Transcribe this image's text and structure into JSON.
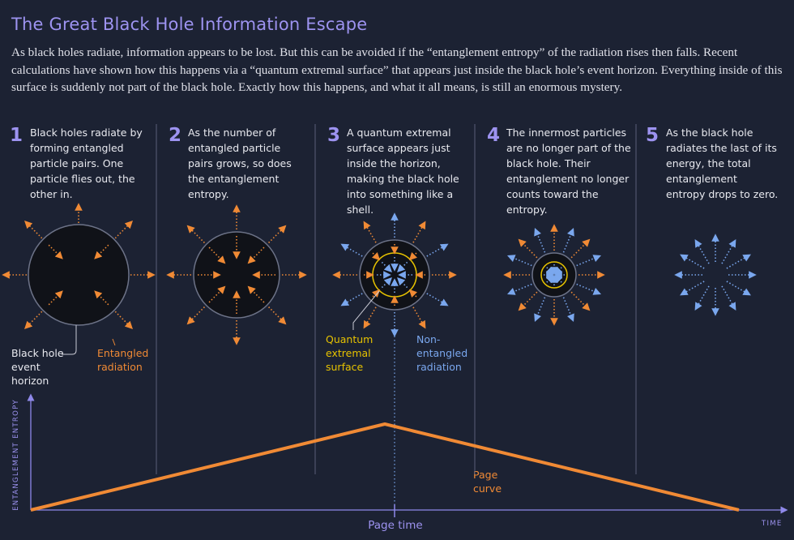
{
  "title": "The Great Black Hole Information Escape",
  "intro": "As black holes radiate, information appears to be lost. But this can be avoided if the “entanglement entropy” of the radiation rises then falls. Recent calculations have shown how this happens via a “quantum extremal surface” that appears just inside the black hole’s event horizon. Everything inside of this surface is suddenly not part of the black hole. Exactly how this happens, and what it all means, is still an enormous mystery.",
  "panels": [
    {
      "num": "1",
      "text": "Black holes radiate by forming entangled particle pairs. One particle flies out, the other in."
    },
    {
      "num": "2",
      "text": "As the number of entangled particle pairs grows, so does the entanglement entropy."
    },
    {
      "num": "3",
      "text": "A quantum extremal surface appears just inside the horizon, making the black hole into something like a shell."
    },
    {
      "num": "4",
      "text": "The innermost particles are no longer part of the black hole. Their entanglement no longer counts toward the entropy."
    },
    {
      "num": "5",
      "text": "As the black hole radiates the last of its energy, the total entanglement entropy drops to zero."
    }
  ],
  "labels": {
    "horizon": "Black hole event horizon",
    "entangled": "Entangled radiation",
    "qes": "Quantum extremal surface",
    "nonentangled": "Non-entangled radiation",
    "page_curve": "Page curve",
    "page_time": "Page time",
    "y_axis": "ENTANGLEMENT ENTROPY",
    "x_axis": "TIME"
  },
  "colors": {
    "background": "#1c2233",
    "title": "#9d93f0",
    "orange": "#f08a35",
    "yellow": "#e6c200",
    "blue": "#7aa7ee",
    "axis": "#8f89ea"
  },
  "chart_data": {
    "type": "line",
    "x": [
      0,
      0.5,
      1
    ],
    "y": [
      0,
      1,
      0
    ],
    "xlabel": "TIME",
    "ylabel": "ENTANGLEMENT ENTROPY"
  }
}
